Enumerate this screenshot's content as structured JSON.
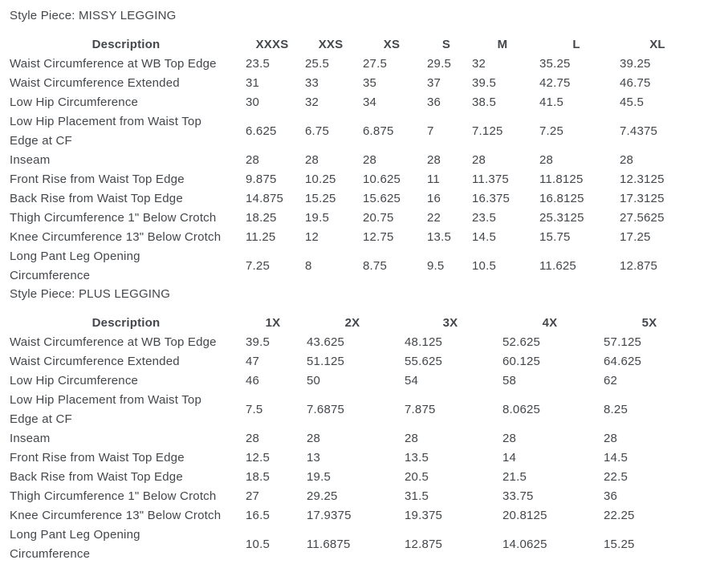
{
  "page": {
    "background_color": "#ffffff",
    "text_color": "#43474b"
  },
  "sections": [
    {
      "title": "Style Piece: MISSY LEGGING",
      "columns": [
        "Description",
        "XXXS",
        "XXS",
        "XS",
        "S",
        "M",
        "L",
        "XL"
      ],
      "rows": [
        {
          "label": "Waist Circumference at WB Top Edge",
          "values": [
            "23.5",
            "25.5",
            "27.5",
            "29.5",
            "32",
            "35.25",
            "39.25"
          ]
        },
        {
          "label": "Waist Circumference Extended",
          "values": [
            "31",
            "33",
            "35",
            "37",
            "39.5",
            "42.75",
            "46.75"
          ]
        },
        {
          "label": "Low Hip Circumference",
          "values": [
            "30",
            "32",
            "34",
            "36",
            "38.5",
            "41.5",
            "45.5"
          ]
        },
        {
          "label": "Low Hip Placement from Waist Top Edge at CF",
          "values": [
            "6.625",
            "6.75",
            "6.875",
            "7",
            "7.125",
            "7.25",
            "7.4375"
          ]
        },
        {
          "label": "Inseam",
          "values": [
            "28",
            "28",
            "28",
            "28",
            "28",
            "28",
            "28"
          ]
        },
        {
          "label": "Front Rise from Waist Top Edge",
          "values": [
            "9.875",
            "10.25",
            "10.625",
            "11",
            "11.375",
            "11.8125",
            "12.3125"
          ]
        },
        {
          "label": "Back Rise from Waist Top Edge",
          "values": [
            "14.875",
            "15.25",
            "15.625",
            "16",
            "16.375",
            "16.8125",
            "17.3125"
          ]
        },
        {
          "label": "Thigh Circumference 1\" Below Crotch",
          "values": [
            "18.25",
            "19.5",
            "20.75",
            "22",
            "23.5",
            "25.3125",
            "27.5625"
          ]
        },
        {
          "label": "Knee Circumference 13\" Below Crotch",
          "values": [
            "11.25",
            "12",
            "12.75",
            "13.5",
            "14.5",
            "15.75",
            "17.25"
          ]
        },
        {
          "label": "Long Pant Leg Opening Circumference",
          "values": [
            "7.25",
            "8",
            "8.75",
            "9.5",
            "10.5",
            "11.625",
            "12.875"
          ]
        }
      ]
    },
    {
      "title": "Style Piece: PLUS LEGGING",
      "columns": [
        "Description",
        "1X",
        "2X",
        "3X",
        "4X",
        "5X"
      ],
      "rows": [
        {
          "label": "Waist Circumference at WB Top Edge",
          "values": [
            "39.5",
            "43.625",
            "48.125",
            "52.625",
            "57.125"
          ]
        },
        {
          "label": "Waist Circumference Extended",
          "values": [
            "47",
            "51.125",
            "55.625",
            "60.125",
            "64.625"
          ]
        },
        {
          "label": "Low Hip Circumference",
          "values": [
            "46",
            "50",
            "54",
            "58",
            "62"
          ]
        },
        {
          "label": "Low Hip Placement from Waist Top Edge at CF",
          "values": [
            "7.5",
            "7.6875",
            "7.875",
            "8.0625",
            "8.25"
          ]
        },
        {
          "label": "Inseam",
          "values": [
            "28",
            "28",
            "28",
            "28",
            "28"
          ]
        },
        {
          "label": "Front Rise from Waist Top Edge",
          "values": [
            "12.5",
            "13",
            "13.5",
            "14",
            "14.5"
          ]
        },
        {
          "label": "Back Rise from Waist Top Edge",
          "values": [
            "18.5",
            "19.5",
            "20.5",
            "21.5",
            "22.5"
          ]
        },
        {
          "label": "Thigh Circumference 1\" Below Crotch",
          "values": [
            "27",
            "29.25",
            "31.5",
            "33.75",
            "36"
          ]
        },
        {
          "label": "Knee Circumference 13\" Below Crotch",
          "values": [
            "16.5",
            "17.9375",
            "19.375",
            "20.8125",
            "22.25"
          ]
        },
        {
          "label": "Long Pant Leg Opening Circumference",
          "values": [
            "10.5",
            "11.6875",
            "12.875",
            "14.0625",
            "15.25"
          ]
        }
      ]
    }
  ]
}
